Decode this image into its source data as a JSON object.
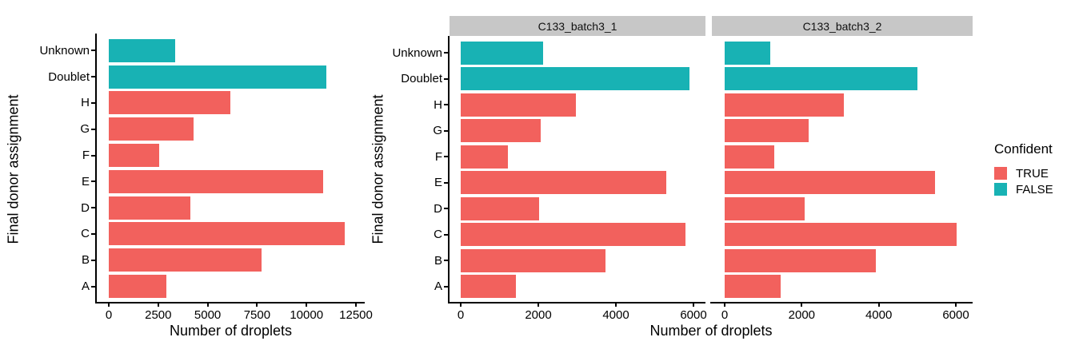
{
  "figure": {
    "background": "#FFFFFF",
    "axis_color": "#000000",
    "text_color": "#000000",
    "strip_background": "#C7C7C7"
  },
  "legend": {
    "title": "Confident",
    "position": "right",
    "items": [
      {
        "label": "TRUE",
        "color": "#F2615D"
      },
      {
        "label": "FALSE",
        "color": "#18B2B4"
      }
    ]
  },
  "chart_data": [
    {
      "type": "bar",
      "orientation": "horizontal",
      "panel": "overall",
      "facet_label": "",
      "xlabel": "Number of droplets",
      "ylabel": "Final donor assignment",
      "grid": false,
      "categories": [
        "Unknown",
        "Doublet",
        "H",
        "G",
        "F",
        "E",
        "D",
        "C",
        "B",
        "A"
      ],
      "group": [
        "FALSE",
        "FALSE",
        "TRUE",
        "TRUE",
        "TRUE",
        "TRUE",
        "TRUE",
        "TRUE",
        "TRUE",
        "TRUE"
      ],
      "values": [
        3350,
        11000,
        6150,
        4290,
        2550,
        10840,
        4130,
        11930,
        7730,
        2910
      ],
      "xlim": [
        0,
        12500
      ],
      "xticks": [
        0,
        2500,
        5000,
        7500,
        10000,
        12500
      ]
    },
    {
      "type": "bar",
      "orientation": "horizontal",
      "panel": "facet-1",
      "facet_label": "C133_batch3_1",
      "xlabel": "Number of droplets",
      "ylabel": "Final donor assignment",
      "grid": false,
      "categories": [
        "Unknown",
        "Doublet",
        "H",
        "G",
        "F",
        "E",
        "D",
        "C",
        "B",
        "A"
      ],
      "group": [
        "FALSE",
        "FALSE",
        "TRUE",
        "TRUE",
        "TRUE",
        "TRUE",
        "TRUE",
        "TRUE",
        "TRUE",
        "TRUE"
      ],
      "values": [
        2120,
        5900,
        2970,
        2060,
        1220,
        5300,
        2020,
        5800,
        3730,
        1420
      ],
      "xlim": [
        0,
        6000
      ],
      "xticks": [
        0,
        2000,
        4000,
        6000
      ]
    },
    {
      "type": "bar",
      "orientation": "horizontal",
      "panel": "facet-2",
      "facet_label": "C133_batch3_2",
      "xlabel": "Number of droplets",
      "ylabel": "Final donor assignment",
      "grid": false,
      "categories": [
        "Unknown",
        "Doublet",
        "H",
        "G",
        "F",
        "E",
        "D",
        "C",
        "B",
        "A"
      ],
      "group": [
        "FALSE",
        "FALSE",
        "TRUE",
        "TRUE",
        "TRUE",
        "TRUE",
        "TRUE",
        "TRUE",
        "TRUE",
        "TRUE"
      ],
      "values": [
        1190,
        5000,
        3100,
        2180,
        1290,
        5460,
        2080,
        6020,
        3930,
        1460
      ],
      "xlim": [
        0,
        6000
      ],
      "xticks": [
        0,
        2000,
        4000,
        6000
      ]
    }
  ]
}
